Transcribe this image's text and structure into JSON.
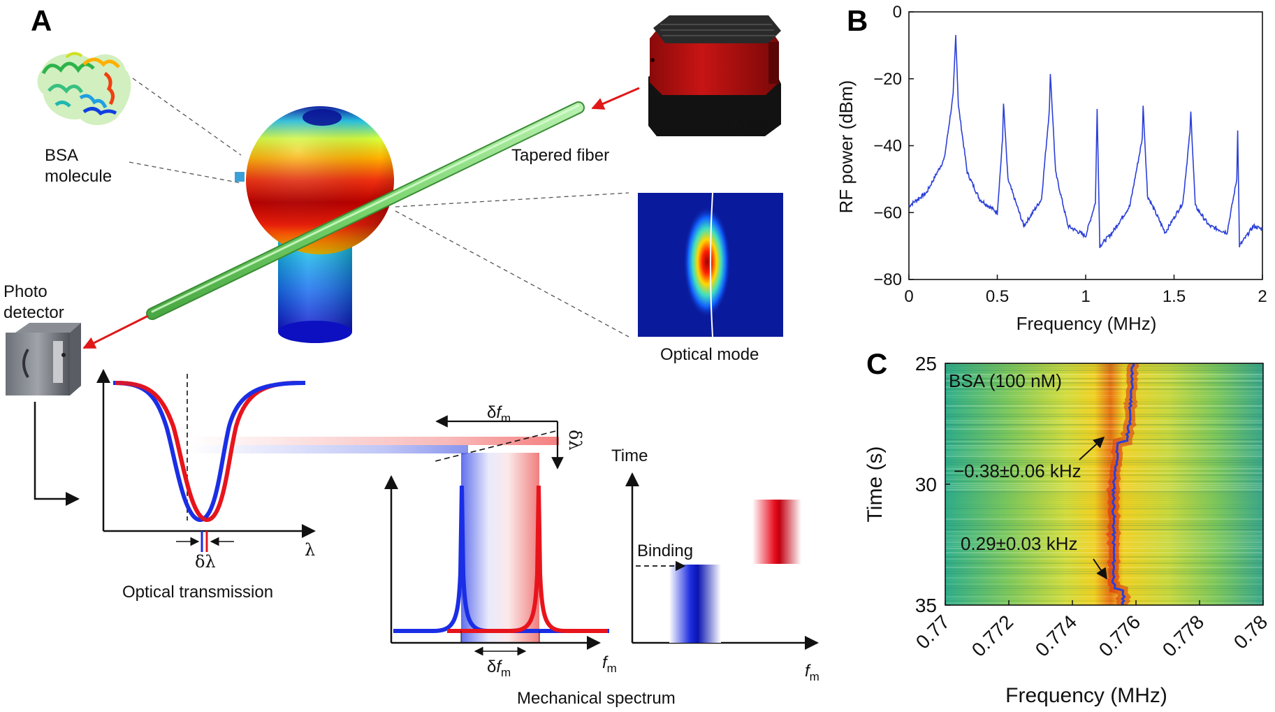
{
  "panels": {
    "a": "A",
    "b": "B",
    "c": "C"
  },
  "panel_a": {
    "bsa_line1": "BSA",
    "bsa_line2": "molecule",
    "laser": "Laser",
    "tapered_fiber": "Tapered fiber",
    "photo_line1": "Photo",
    "photo_line2": "detector",
    "optical_mode": "Optical mode",
    "optical_transmission": "Optical transmission",
    "lambda": "λ",
    "dlambda": "δλ",
    "dfm": "δf",
    "fm": "f",
    "sub_m": "m",
    "time": "Time",
    "binding": "Binding",
    "mechanical_spectrum": "Mechanical spectrum"
  },
  "colors": {
    "blue": "#1a2ee6",
    "red": "#e8141c",
    "trace": "#2b3fd8",
    "green": "#7ed873"
  },
  "chart_data": [
    {
      "type": "line",
      "xlabel": "Frequency (MHz)",
      "ylabel": "RF power (dBm)",
      "xlim": [
        0,
        2
      ],
      "ylim": [
        -80,
        0
      ],
      "xticks": [
        "0",
        "0.5",
        "1",
        "1.5",
        "2"
      ],
      "yticks": [
        "0",
        "−20",
        "−40",
        "−60",
        "−80"
      ],
      "grid": false,
      "series": [
        {
          "x": [
            0,
            0.1,
            0.2,
            0.25,
            0.265,
            0.28,
            0.33,
            0.4,
            0.5,
            0.53,
            0.535,
            0.56,
            0.65,
            0.75,
            0.795,
            0.8,
            0.83,
            0.9,
            1.0,
            1.055,
            1.065,
            1.08,
            1.15,
            1.25,
            1.32,
            1.325,
            1.35,
            1.45,
            1.55,
            1.59,
            1.595,
            1.62,
            1.7,
            1.8,
            1.855,
            1.86,
            1.87,
            1.95,
            2.0
          ],
          "y": [
            -58,
            -54,
            -44,
            -25,
            -7,
            -28,
            -48,
            -56,
            -60,
            -38,
            -27,
            -50,
            -64,
            -56,
            -29,
            -18,
            -48,
            -64,
            -67,
            -57,
            -29,
            -70,
            -66,
            -58,
            -38,
            -28,
            -55,
            -66,
            -57,
            -36,
            -30,
            -58,
            -64,
            -66,
            -50,
            -35,
            -70,
            -64,
            -65
          ]
        }
      ]
    },
    {
      "type": "heatmap",
      "xlabel": "Frequency (MHz)",
      "ylabel": "Time (s)",
      "xlim": [
        0.77,
        0.78
      ],
      "ylim": [
        25,
        35
      ],
      "xticks": [
        "0.77",
        "0.772",
        "0.774",
        "0.776",
        "0.778",
        "0.78"
      ],
      "yticks": [
        "25",
        "30",
        "35"
      ],
      "legend_text": "BSA (100 nM)",
      "annotations": [
        "−0.38±0.06 kHz",
        "0.29±0.03 kHz"
      ],
      "series": [
        {
          "x_time": [
            25,
            27.5,
            28.2,
            28.3,
            29.0,
            30.0,
            31.0,
            32.0,
            33.0,
            34.0,
            34.3,
            34.4,
            35.0
          ],
          "peak_mhz": [
            0.7759,
            0.7758,
            0.7757,
            0.7754,
            0.7754,
            0.7753,
            0.7753,
            0.7753,
            0.7753,
            0.7753,
            0.7753,
            0.7756,
            0.7756
          ]
        }
      ]
    }
  ]
}
